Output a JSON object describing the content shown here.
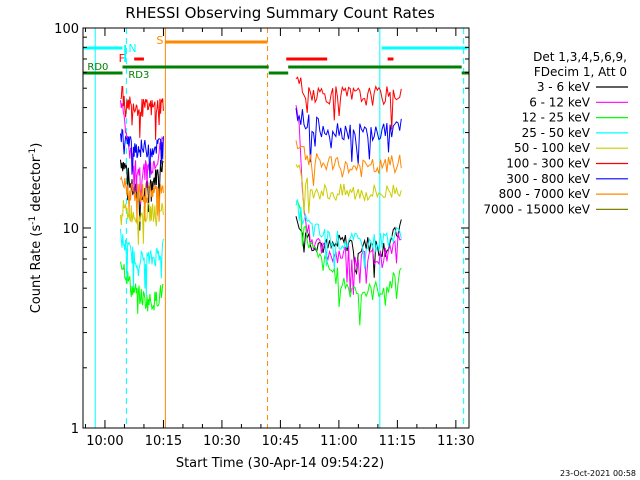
{
  "chart_data": {
    "type": "line",
    "title": "RHESSI Observing Summary Count Rates",
    "xlabel": "Start Time (30-Apr-14 09:54:22)",
    "ylabel_main": "Count Rate (s",
    "ylabel_sup1": "-1",
    "ylabel_mid": " detector",
    "ylabel_sup2": "-1",
    "ylabel_end": ")",
    "y_scale": "log",
    "ylim": [
      1,
      100
    ],
    "xlim_minutes": [
      -5.63,
      93.37
    ],
    "x_ticks": [
      {
        "label": "10:00",
        "minute": 0
      },
      {
        "label": "10:15",
        "minute": 15
      },
      {
        "label": "10:30",
        "minute": 30
      },
      {
        "label": "10:45",
        "minute": 45
      },
      {
        "label": "11:00",
        "minute": 60
      },
      {
        "label": "11:15",
        "minute": 75
      },
      {
        "label": "11:30",
        "minute": 90
      }
    ],
    "y_ticks": [
      {
        "label": "1",
        "value": 1
      },
      {
        "label": "10",
        "value": 10
      },
      {
        "label": "100",
        "value": 100
      }
    ],
    "legend": {
      "position": "right",
      "header_line1": "Det 1,3,4,5,6,9,",
      "header_line2": "FDecim 1, Att 0"
    },
    "series": [
      {
        "name": "3 - 6 keV",
        "color": "#000000",
        "seg1": [
          22,
          20,
          16,
          15,
          14,
          16,
          17,
          19,
          22
        ],
        "seg2": [
          12,
          10,
          8.5,
          8.5,
          8,
          8,
          8.5,
          8.5,
          8,
          8,
          8.5,
          8,
          8,
          9,
          10
        ]
      },
      {
        "name": "6 - 12 keV",
        "color": "#ff00ff",
        "seg1": [
          45,
          30,
          22,
          20,
          19,
          20,
          21,
          23,
          28
        ],
        "seg2": [
          45,
          12,
          9,
          8,
          7.5,
          7.5,
          7.5,
          7.5,
          7,
          7,
          7.2,
          7,
          7.2,
          8,
          9
        ]
      },
      {
        "name": "12 - 25 keV",
        "color": "#00ff00",
        "seg1": [
          7,
          6,
          5,
          4.8,
          4.5,
          4.3,
          4.3,
          4.5,
          5
        ],
        "seg2": [
          13,
          10,
          8,
          7,
          6.5,
          6,
          5.5,
          5,
          5,
          4.8,
          4.8,
          5,
          5,
          5.5,
          6
        ]
      },
      {
        "name": "25 - 50 keV",
        "color": "#00ffff",
        "seg1": [
          9,
          8,
          7.5,
          7,
          7,
          7,
          7,
          7.5,
          8
        ],
        "seg2": [
          13,
          11,
          10,
          9.5,
          9,
          9,
          8.5,
          8.5,
          8.5,
          8.5,
          8.5,
          8.5,
          9,
          9,
          9.5
        ]
      },
      {
        "name": "50 - 100 keV",
        "color": "#cccc00",
        "seg1": [
          13,
          12,
          12,
          11.5,
          11.5,
          12,
          12,
          12.5,
          13
        ],
        "seg2": [
          20,
          17,
          16,
          15.5,
          15,
          15,
          15,
          15,
          15,
          15,
          15,
          15,
          15,
          15.5,
          16
        ]
      },
      {
        "name": "100 - 300 keV",
        "color": "#ff0000",
        "seg1": [
          48,
          43,
          42,
          41,
          40,
          40,
          40,
          41,
          42
        ],
        "seg2": [
          55,
          50,
          48,
          47,
          47,
          46,
          46,
          46,
          46,
          45,
          46,
          46,
          46,
          47,
          48
        ]
      },
      {
        "name": "300 - 800 keV",
        "color": "#0000ff",
        "seg1": [
          30,
          27,
          26,
          25,
          25,
          25,
          25,
          26,
          27
        ],
        "seg2": [
          40,
          35,
          33,
          32,
          32,
          31,
          31,
          31,
          30,
          30,
          30,
          30,
          31,
          31,
          32
        ]
      },
      {
        "name": "800 - 7000 keV",
        "color": "#ff8800",
        "seg1": [
          17,
          16,
          15.5,
          15,
          15,
          15,
          15.5,
          15.5,
          16
        ],
        "seg2": [
          28,
          24,
          22,
          21,
          21,
          20.5,
          20,
          20,
          20,
          20,
          20,
          20,
          20.5,
          21,
          21
        ]
      },
      {
        "name": "7000 - 15000 keV",
        "color": "#808000",
        "seg1": [],
        "seg2": []
      }
    ],
    "segments": {
      "seg1_minutes": [
        4,
        15
      ],
      "seg2_minutes": [
        49,
        76
      ]
    },
    "annotations": {
      "n_label": "N",
      "f_label": "F",
      "s_label": "S",
      "rd0_label": "RD0",
      "rd3_label": "RD3"
    },
    "colors": {
      "background": "#ffffff",
      "axes": "#000000",
      "cyan_flag": "#00ffff",
      "orange_flag": "#ff8800",
      "green_flag": "#008000",
      "red_flag": "#ff0000"
    }
  },
  "footer": {
    "timestamp": "23-Oct-2021 00:58"
  }
}
